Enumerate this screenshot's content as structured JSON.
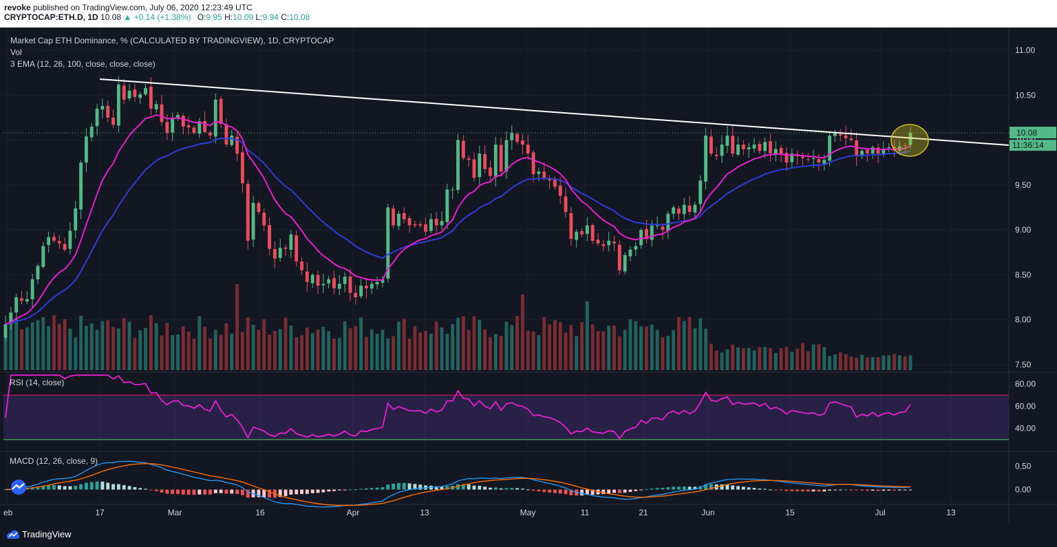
{
  "header": {
    "author": "revoke",
    "published_text": "published on TradingView.com, July 06, 2020 12:23:49 UTC",
    "symbol": "CRYPTOCAP:ETH.D, 1D",
    "last": "10.08",
    "change": "+0.14 (+1.38%)",
    "change_arrow": "▲",
    "o_label": "O:",
    "o": "9.95",
    "h_label": "H:",
    "h": "10.09",
    "l_label": "L:",
    "l": "9.94",
    "c_label": "C:",
    "c": "10.08"
  },
  "legend": {
    "title": "Market Cap ETH Dominance, % (CALCULATED BY TRADINGVIEW), 1D, CRYPTOCAP",
    "vol": "Vol",
    "ema": "3 EMA (12, 26, 100, close, close, close)",
    "rsi": "RSI (14, close)",
    "macd": "MACD (12, 26, close, 9)"
  },
  "price_axis": {
    "ticks": [
      "11.00",
      "10.50",
      "10.00",
      "9.50",
      "9.00",
      "8.50",
      "8.00",
      "7.50"
    ],
    "last_price": "10.08",
    "countdown": "11:36:14"
  },
  "rsi_axis": {
    "ticks": [
      "80.00",
      "60.00",
      "40.00"
    ]
  },
  "macd_axis": {
    "ticks": [
      "0.50",
      "0.00"
    ]
  },
  "time_axis": {
    "ticks": [
      "eb",
      "17",
      "Mar",
      "16",
      "Apr",
      "13",
      "May",
      "11",
      "21",
      "Jun",
      "15",
      "Jul",
      "13"
    ]
  },
  "footer": {
    "brand": "TradingView"
  },
  "colors": {
    "background": "#131722",
    "up": "#26a69a",
    "up_candle": "#53b987",
    "down_candle": "#eb4d5c",
    "ema12": "#e91fd0",
    "ema26": "#2e3dd9",
    "trendline": "#ffffff",
    "highlight": "#d4c21a",
    "rsi_line": "#e91fd0",
    "macd_line": "#2196f3",
    "signal_line": "#ff6d00"
  },
  "chart_data": {
    "type": "candlestick",
    "title": "Market Cap ETH Dominance, % (CALCULATED BY TRADINGVIEW), 1D, CRYPTOCAP",
    "x_start": "2020-02-01",
    "x_end": "2020-07-06",
    "ylim": [
      7.5,
      11.0
    ],
    "candles_close": [
      7.95,
      8.08,
      8.25,
      8.21,
      8.23,
      8.45,
      8.6,
      8.82,
      8.92,
      8.88,
      8.85,
      8.78,
      8.99,
      9.24,
      9.75,
      10.04,
      10.15,
      10.35,
      10.38,
      10.25,
      10.17,
      10.62,
      10.45,
      10.55,
      10.48,
      10.51,
      10.58,
      10.35,
      10.4,
      10.2,
      10.08,
      10.25,
      10.28,
      10.15,
      10.14,
      10.08,
      10.21,
      10.09,
      10.05,
      10.45,
      10.18,
      9.95,
      10.05,
      9.85,
      9.52,
      8.88,
      9.3,
      9.2,
      9.05,
      8.79,
      8.68,
      8.8,
      8.79,
      8.95,
      8.65,
      8.55,
      8.42,
      8.5,
      8.38,
      8.4,
      8.45,
      8.35,
      8.4,
      8.48,
      8.3,
      8.25,
      8.38,
      8.35,
      8.4,
      8.42,
      8.45,
      9.25,
      9.05,
      9.18,
      9.12,
      9.05,
      9.05,
      9.05,
      8.98,
      9.12,
      9.05,
      9.1,
      9.45,
      9.45,
      10.0,
      9.8,
      9.78,
      9.58,
      9.85,
      9.68,
      9.6,
      9.95,
      9.65,
      10.0,
      10.08,
      9.98,
      9.95,
      9.85,
      9.62,
      9.65,
      9.58,
      9.55,
      9.48,
      9.38,
      9.2,
      8.9,
      8.98,
      8.95,
      9.05,
      8.88,
      8.85,
      8.82,
      8.88,
      8.85,
      8.55,
      8.72,
      8.78,
      8.82,
      9.0,
      8.9,
      9.05,
      9.05,
      9.0,
      9.18,
      9.25,
      9.18,
      9.28,
      9.2,
      9.28,
      9.55,
      10.05,
      9.85,
      9.82,
      9.95,
      10.05,
      9.85,
      9.95,
      9.9,
      9.92,
      9.95,
      9.88,
      9.98,
      9.85,
      9.9,
      9.85,
      9.75,
      9.85,
      9.82,
      9.8,
      9.78,
      9.8,
      9.75,
      9.78,
      10.05,
      10.08,
      10.05,
      10.02,
      10.0,
      9.82,
      9.88,
      9.85,
      9.92,
      9.85,
      9.9,
      9.92,
      9.88,
      9.93,
      9.94,
      10.08
    ],
    "rsi_ylim": [
      20,
      90
    ],
    "rsi_levels": [
      70,
      30
    ],
    "macd_ylim": [
      -0.3,
      0.8
    ]
  }
}
